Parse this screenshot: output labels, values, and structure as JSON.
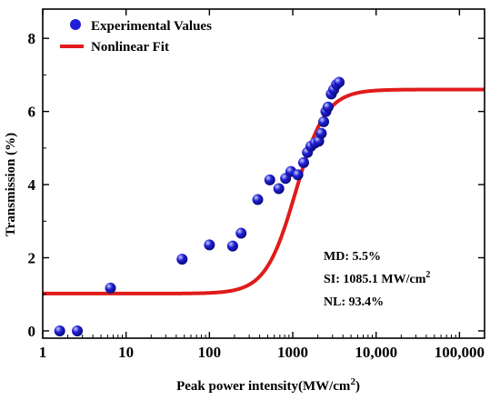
{
  "chart_data": {
    "type": "scatter",
    "xlabel": "Peak  power intensity(MW/cm",
    "xlabel_sup": "2",
    "xlabel_close": ")",
    "ylabel": "Transmission (%)",
    "xscale": "log",
    "xlim": [
      1,
      200000
    ],
    "ylim": [
      -0.2,
      8.8
    ],
    "x_ticks": [
      {
        "value": 1,
        "label": "1"
      },
      {
        "value": 10,
        "label": "10"
      },
      {
        "value": 100,
        "label": "100"
      },
      {
        "value": 1000,
        "label": "1000"
      },
      {
        "value": 10000,
        "label": "10,000"
      },
      {
        "value": 100000,
        "label": "100,000"
      }
    ],
    "y_ticks": [
      {
        "value": 0,
        "label": "0"
      },
      {
        "value": 2,
        "label": "2"
      },
      {
        "value": 4,
        "label": "4"
      },
      {
        "value": 6,
        "label": "6"
      },
      {
        "value": 8,
        "label": "8"
      }
    ],
    "legend_placement": "top-left",
    "legend": [
      {
        "label": "Experimental Values",
        "kind": "marker",
        "color": "#1f1fd6"
      },
      {
        "label": "Nonlinear Fit",
        "kind": "line",
        "color": "#e01b1b"
      }
    ],
    "series": [
      {
        "name": "Experimental Values",
        "kind": "scatter",
        "color": "#1f1fd6",
        "points": [
          {
            "x": 1.6,
            "y": 0.0
          },
          {
            "x": 2.6,
            "y": 0.0
          },
          {
            "x": 6.5,
            "y": 1.17
          },
          {
            "x": 47,
            "y": 1.96
          },
          {
            "x": 100,
            "y": 2.35
          },
          {
            "x": 190,
            "y": 2.32
          },
          {
            "x": 240,
            "y": 2.67
          },
          {
            "x": 380,
            "y": 3.59
          },
          {
            "x": 530,
            "y": 4.13
          },
          {
            "x": 680,
            "y": 3.89
          },
          {
            "x": 820,
            "y": 4.17
          },
          {
            "x": 950,
            "y": 4.36
          },
          {
            "x": 1150,
            "y": 4.27
          },
          {
            "x": 1350,
            "y": 4.6
          },
          {
            "x": 1500,
            "y": 4.88
          },
          {
            "x": 1650,
            "y": 5.05
          },
          {
            "x": 1850,
            "y": 5.14
          },
          {
            "x": 2050,
            "y": 5.19
          },
          {
            "x": 2200,
            "y": 5.4
          },
          {
            "x": 2350,
            "y": 5.72
          },
          {
            "x": 2500,
            "y": 6.0
          },
          {
            "x": 2650,
            "y": 6.12
          },
          {
            "x": 2900,
            "y": 6.48
          },
          {
            "x": 3100,
            "y": 6.6
          },
          {
            "x": 3350,
            "y": 6.74
          },
          {
            "x": 3600,
            "y": 6.8
          }
        ]
      },
      {
        "name": "Nonlinear Fit",
        "kind": "line",
        "color": "#e01b1b",
        "model": {
          "T_min": 1.02,
          "T_max": 6.6,
          "Isat": 1085.1,
          "n": 2.4
        }
      }
    ],
    "annotations": [
      {
        "label": "MD: 5.5%"
      },
      {
        "label": "SI: 1085.1 MW/cm",
        "sup": "2"
      },
      {
        "label": "NL: 93.4%"
      }
    ]
  }
}
